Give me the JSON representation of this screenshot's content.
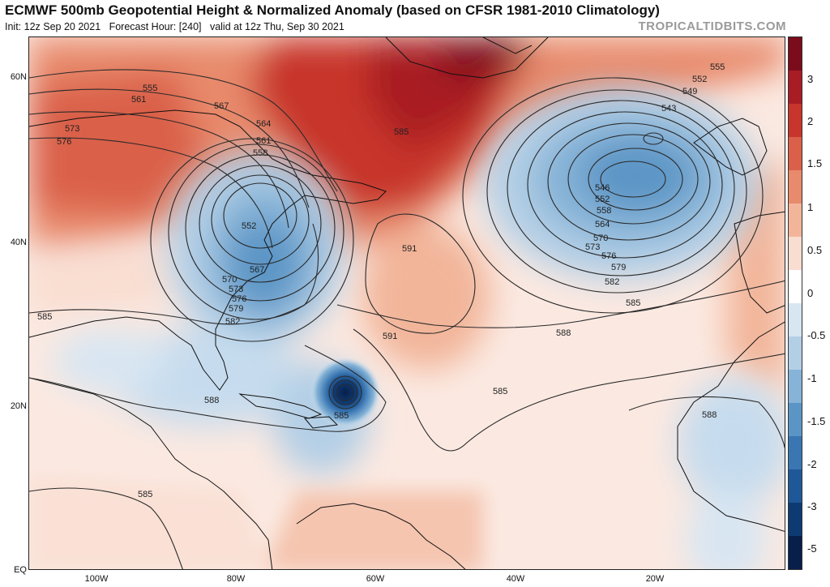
{
  "header": {
    "title": "ECMWF 500mb Geopotential Height & Normalized Anomaly (based on CFSR 1981-2010 Climatology)",
    "init": "Init: 12z Sep 20 2021",
    "forecast_hour": "Forecast Hour: [240]",
    "valid": "valid at 12z Thu, Sep 30 2021",
    "brand": "TROPICALTIDBITS.COM"
  },
  "axes": {
    "lat_labels": [
      "60N",
      "40N",
      "20N",
      "EQ"
    ],
    "lon_labels": [
      "100W",
      "80W",
      "60W",
      "40W",
      "20W"
    ]
  },
  "colorbar": {
    "labels": [
      "3",
      "2",
      "1.5",
      "1",
      "0.5",
      "0",
      "-0.5",
      "-1",
      "-1.5",
      "-2",
      "-3",
      "-5"
    ],
    "colors": [
      "#7a0c1c",
      "#a81c24",
      "#c8352c",
      "#da6049",
      "#e88a6c",
      "#f2b59a",
      "#f9ddd0",
      "#ffffff",
      "#d8e6f2",
      "#b3cfe6",
      "#86b3d7",
      "#5b95c6",
      "#3976b2",
      "#1f5898",
      "#0e3a73",
      "#071f4a"
    ]
  },
  "contour_labels": [
    "555",
    "561",
    "567",
    "573",
    "576",
    "564",
    "561",
    "558",
    "585",
    "552",
    "567",
    "570",
    "573",
    "576",
    "579",
    "582",
    "585",
    "591",
    "591",
    "588",
    "585",
    "555",
    "552",
    "549",
    "543",
    "546",
    "552",
    "558",
    "564",
    "570",
    "573",
    "576",
    "579",
    "582",
    "585",
    "588",
    "588",
    "585",
    "585"
  ],
  "colors": {
    "warm_strong": "#b11f26",
    "warm": "#e4826a",
    "warm_light": "#f6c8b5",
    "cool_light": "#c6dcee",
    "cool": "#5f97c8",
    "cool_strong": "#1d4f8f",
    "contour": "#2a2a2a",
    "coast": "#111111"
  }
}
